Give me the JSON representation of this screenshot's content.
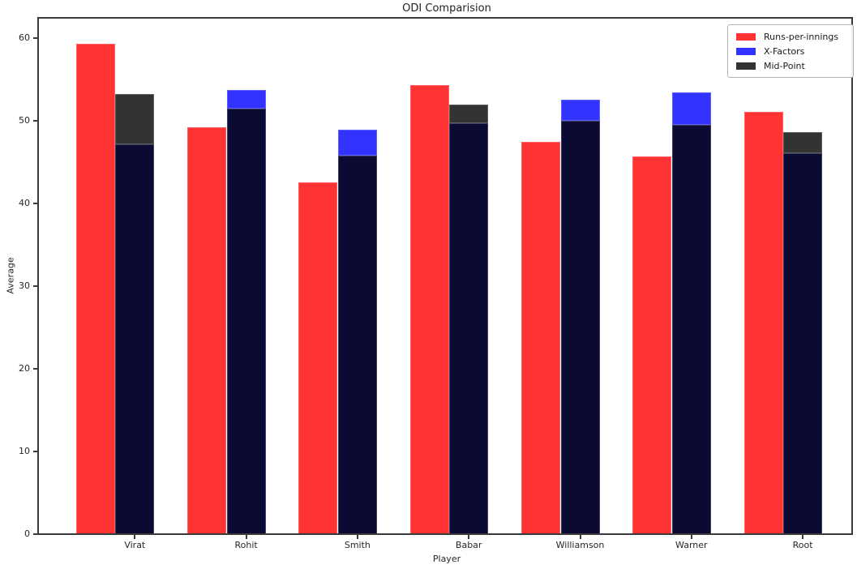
{
  "figure": {
    "background": "#ffffff",
    "axis_color": "#3a3a3a"
  },
  "chart_data": {
    "type": "bar",
    "title": "ODI Comparision",
    "xlabel": "Player",
    "ylabel": "Average",
    "categories": [
      "Virat",
      "Rohit",
      "Smith",
      "Babar",
      "Williamson",
      "Warner",
      "Root"
    ],
    "series": [
      {
        "name": "Runs-per-innings",
        "color": "#ff3333",
        "values": [
          59.3,
          49.2,
          42.6,
          54.3,
          47.5,
          45.7,
          51.1
        ]
      },
      {
        "name": "X-Factors",
        "color": "#3333ff",
        "values": [
          47.2,
          53.7,
          48.9,
          49.7,
          52.6,
          53.4,
          46.1
        ]
      },
      {
        "name": "Mid-Point",
        "color": "#333333",
        "values": [
          53.25,
          51.45,
          45.75,
          52.0,
          50.05,
          49.55,
          48.6
        ]
      }
    ],
    "overlap_color": "#0a0a33",
    "yticks": [
      0,
      10,
      20,
      30,
      40,
      50,
      60
    ],
    "ylim": [
      0,
      62.45
    ],
    "grid": false,
    "legend_position": "upper right",
    "legend_entries": [
      "Runs-per-innings",
      "X-Factors",
      "Mid-Point"
    ]
  }
}
